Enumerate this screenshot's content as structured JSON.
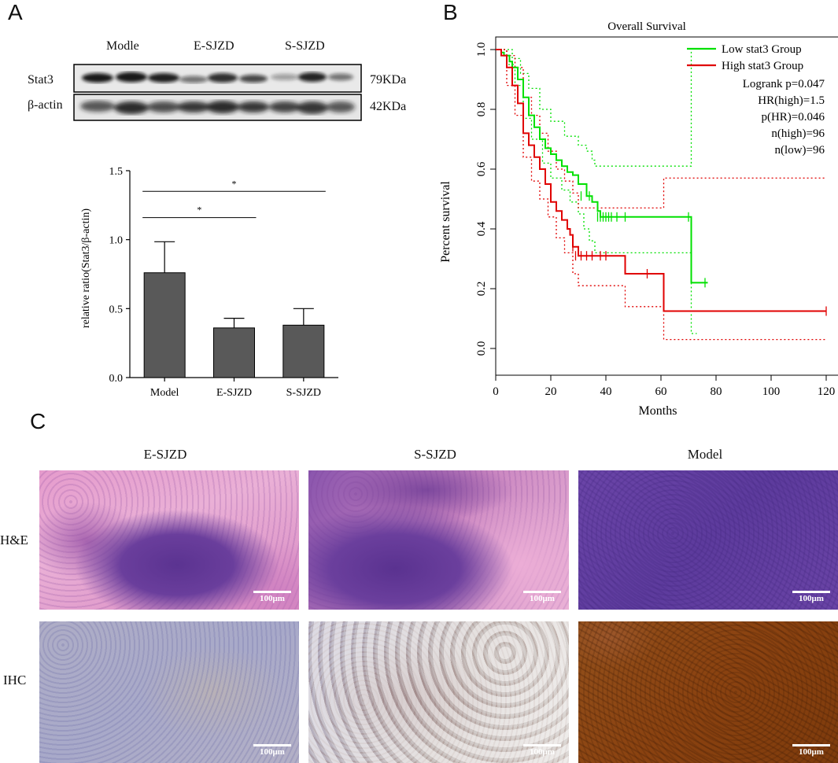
{
  "panels": {
    "a": "A",
    "b": "B",
    "c": "C"
  },
  "western_blot": {
    "groups": [
      "Modle",
      "E-SJZD",
      "S-SJZD"
    ],
    "rows": [
      {
        "protein": "Stat3",
        "size": "79KDa"
      },
      {
        "protein": "β-actin",
        "size": "42KDa"
      }
    ]
  },
  "chart_data": [
    {
      "type": "bar",
      "categories": [
        "Model",
        "E-SJZD",
        "S-SJZD"
      ],
      "values": [
        0.76,
        0.36,
        0.38
      ],
      "error_upper": [
        0.985,
        0.43,
        0.5
      ],
      "ylabel": "relative ratio(Stat3/β-actin)",
      "ylim": [
        0,
        1.5
      ],
      "yticks": [
        "0.0",
        "0.5",
        "1.0",
        "1.5"
      ],
      "bar_color": "#595959",
      "significance": [
        {
          "from": "Model",
          "to": "E-SJZD",
          "label": "*"
        },
        {
          "from": "Model",
          "to": "S-SJZD",
          "label": "*"
        }
      ]
    },
    {
      "type": "line",
      "title": "Overall Survival",
      "xlabel": "Months",
      "ylabel": "Percent survival",
      "xlim": [
        0,
        122
      ],
      "ylim": [
        0,
        1.0
      ],
      "xticks": [
        "0",
        "20",
        "40",
        "60",
        "80",
        "100",
        "120"
      ],
      "yticks": [
        "0.0",
        "0.2",
        "0.4",
        "0.6",
        "0.8",
        "1.0"
      ],
      "legend_position": "top-right",
      "series": [
        {
          "name": "Low stat3 Group",
          "color": "#00e000",
          "points": [
            [
              0,
              1.0
            ],
            [
              2,
              0.99
            ],
            [
              3,
              0.98
            ],
            [
              5,
              0.96
            ],
            [
              6,
              0.94
            ],
            [
              8,
              0.9
            ],
            [
              10,
              0.84
            ],
            [
              12,
              0.78
            ],
            [
              14,
              0.74
            ],
            [
              16,
              0.7
            ],
            [
              18,
              0.67
            ],
            [
              20,
              0.65
            ],
            [
              22,
              0.63
            ],
            [
              24,
              0.61
            ],
            [
              26,
              0.59
            ],
            [
              28,
              0.58
            ],
            [
              30,
              0.55
            ],
            [
              33,
              0.51
            ],
            [
              35,
              0.49
            ],
            [
              37,
              0.46
            ],
            [
              38,
              0.44
            ],
            [
              55,
              0.44
            ],
            [
              71,
              0.44
            ],
            [
              71,
              0.22
            ],
            [
              77,
              0.22
            ]
          ],
          "ci_upper": [
            [
              0,
              1.0
            ],
            [
              3,
              1.0
            ],
            [
              6,
              0.97
            ],
            [
              9,
              0.92
            ],
            [
              12,
              0.87
            ],
            [
              16,
              0.8
            ],
            [
              20,
              0.76
            ],
            [
              25,
              0.71
            ],
            [
              30,
              0.68
            ],
            [
              33,
              0.66
            ],
            [
              35,
              0.63
            ],
            [
              36,
              0.61
            ],
            [
              71,
              0.61
            ],
            [
              71,
              1.0
            ]
          ],
          "ci_lower": [
            [
              0,
              1.0
            ],
            [
              4,
              0.95
            ],
            [
              7,
              0.88
            ],
            [
              10,
              0.77
            ],
            [
              13,
              0.7
            ],
            [
              17,
              0.62
            ],
            [
              20,
              0.57
            ],
            [
              24,
              0.53
            ],
            [
              27,
              0.49
            ],
            [
              30,
              0.45
            ],
            [
              32,
              0.4
            ],
            [
              34,
              0.36
            ],
            [
              36,
              0.32
            ],
            [
              71,
              0.32
            ],
            [
              71,
              0.05
            ],
            [
              73,
              0.05
            ]
          ]
        },
        {
          "name": "High stat3 Group",
          "color": "#e00000",
          "points": [
            [
              0,
              1.0
            ],
            [
              2,
              0.98
            ],
            [
              4,
              0.94
            ],
            [
              6,
              0.88
            ],
            [
              8,
              0.82
            ],
            [
              10,
              0.72
            ],
            [
              12,
              0.68
            ],
            [
              14,
              0.64
            ],
            [
              16,
              0.6
            ],
            [
              18,
              0.55
            ],
            [
              20,
              0.49
            ],
            [
              22,
              0.46
            ],
            [
              24,
              0.43
            ],
            [
              26,
              0.4
            ],
            [
              27,
              0.38
            ],
            [
              28,
              0.34
            ],
            [
              30,
              0.31
            ],
            [
              47,
              0.31
            ],
            [
              47,
              0.25
            ],
            [
              61,
              0.25
            ],
            [
              61,
              0.125
            ],
            [
              120,
              0.125
            ]
          ],
          "ci_upper": [
            [
              0,
              1.0
            ],
            [
              4,
              0.98
            ],
            [
              7,
              0.94
            ],
            [
              10,
              0.84
            ],
            [
              13,
              0.78
            ],
            [
              16,
              0.72
            ],
            [
              19,
              0.66
            ],
            [
              22,
              0.6
            ],
            [
              25,
              0.56
            ],
            [
              28,
              0.52
            ],
            [
              30,
              0.47
            ],
            [
              47,
              0.47
            ],
            [
              61,
              0.47
            ],
            [
              61,
              0.57
            ],
            [
              120,
              0.57
            ]
          ],
          "ci_lower": [
            [
              0,
              1.0
            ],
            [
              4,
              0.88
            ],
            [
              7,
              0.78
            ],
            [
              10,
              0.64
            ],
            [
              13,
              0.56
            ],
            [
              16,
              0.5
            ],
            [
              19,
              0.44
            ],
            [
              22,
              0.37
            ],
            [
              25,
              0.32
            ],
            [
              28,
              0.25
            ],
            [
              30,
              0.21
            ],
            [
              47,
              0.21
            ],
            [
              47,
              0.14
            ],
            [
              61,
              0.14
            ],
            [
              61,
              0.03
            ],
            [
              120,
              0.03
            ]
          ]
        }
      ],
      "censor_marks": {
        "low": [
          [
            31,
            0.51
          ],
          [
            34,
            0.51
          ],
          [
            37,
            0.44
          ],
          [
            38,
            0.44
          ],
          [
            39,
            0.44
          ],
          [
            40,
            0.44
          ],
          [
            41,
            0.44
          ],
          [
            42,
            0.44
          ],
          [
            44,
            0.44
          ],
          [
            47,
            0.44
          ],
          [
            70,
            0.44
          ],
          [
            76,
            0.22
          ]
        ],
        "high": [
          [
            28,
            0.34
          ],
          [
            29,
            0.31
          ],
          [
            31,
            0.31
          ],
          [
            33,
            0.31
          ],
          [
            35,
            0.31
          ],
          [
            38,
            0.31
          ],
          [
            40,
            0.31
          ],
          [
            55,
            0.25
          ],
          [
            120,
            0.125
          ]
        ]
      },
      "stats": [
        "Logrank p=0.047",
        "HR(high)=1.5",
        "p(HR)=0.046",
        "n(high)=96",
        "n(low)=96"
      ]
    }
  ],
  "histology": {
    "columns": [
      "E-SJZD",
      "S-SJZD",
      "Model"
    ],
    "rows": [
      "H&E",
      "IHC"
    ],
    "scale_bar": "100μm",
    "stain_colors": {
      "he_pink": "#e7a0cf",
      "he_purple": "#6a3e9c",
      "ihc_blue": "#a8a9c9",
      "ihc_brown": "#8a4210"
    }
  }
}
